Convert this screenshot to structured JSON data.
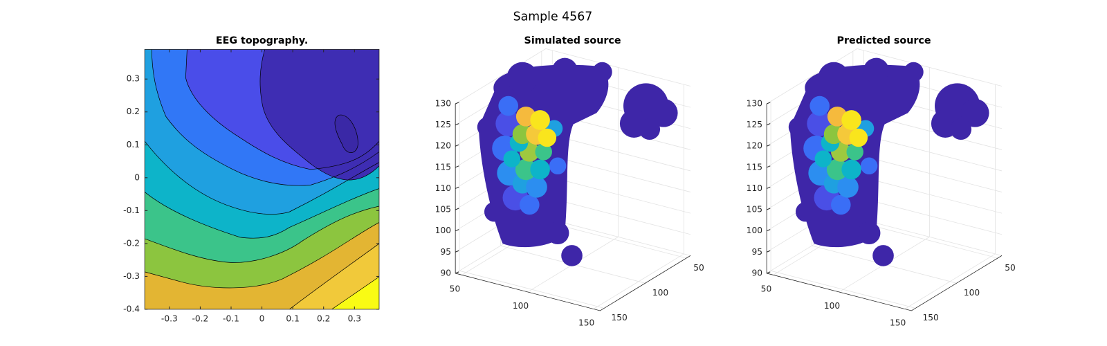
{
  "title": "Sample 4567",
  "chart_data": [
    {
      "type": "contour",
      "title": "EEG topography.",
      "xlim": [
        -0.38,
        0.38
      ],
      "xticks": [
        -0.3,
        -0.2,
        -0.1,
        0,
        0.1,
        0.2,
        0.3
      ],
      "ylim": [
        -0.4,
        0.39
      ],
      "yticks": [
        -0.4,
        -0.3,
        -0.2,
        -0.1,
        0,
        0.1,
        0.2,
        0.3
      ]
    },
    {
      "type": "scatter3d",
      "title": "Simulated source",
      "xlim": [
        45,
        155
      ],
      "xticks": [
        50,
        100,
        150
      ],
      "ylim": [
        45,
        155
      ],
      "yticks": [
        50,
        100,
        150
      ],
      "zlim": [
        90,
        130
      ],
      "zticks": [
        90,
        95,
        100,
        105,
        110,
        115,
        120,
        125,
        130
      ],
      "grid": true
    },
    {
      "type": "scatter3d",
      "title": "Predicted source",
      "xlim": [
        45,
        155
      ],
      "xticks": [
        50,
        100,
        150
      ],
      "ylim": [
        45,
        155
      ],
      "yticks": [
        50,
        100,
        150
      ],
      "zlim": [
        90,
        130
      ],
      "zticks": [
        90,
        95,
        100,
        105,
        110,
        115,
        120,
        125,
        130
      ],
      "grid": true
    }
  ]
}
